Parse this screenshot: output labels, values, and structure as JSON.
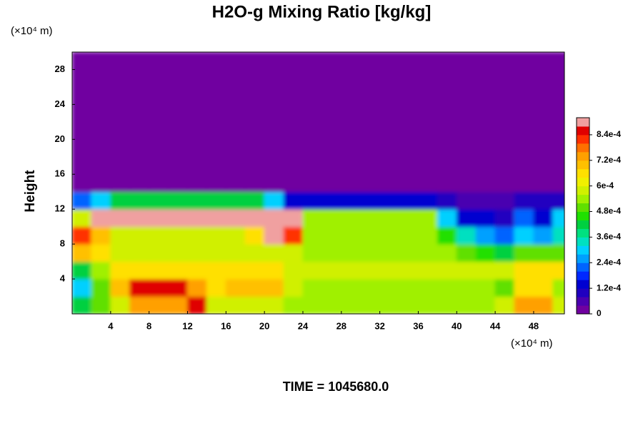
{
  "chart_data": {
    "type": "heatmap",
    "title": "H2O-g Mixing Ratio [kg/kg]",
    "y_label": "Height",
    "x_unit": "(×10⁴ m)",
    "y_unit": "(×10⁴ m)",
    "footer": "TIME = 1045680.0",
    "x": [
      1,
      3,
      5,
      7,
      9,
      11,
      13,
      15,
      17,
      19,
      21,
      23,
      25,
      27,
      29,
      31,
      33,
      35,
      37,
      39,
      41,
      43,
      45,
      47,
      49,
      51
    ],
    "y": [
      1,
      3,
      5,
      7,
      9,
      11,
      13,
      15,
      17,
      19,
      21,
      23,
      25,
      27,
      29
    ],
    "xlim": [
      0,
      51.2
    ],
    "ylim": [
      0,
      30
    ],
    "xticks": [
      4,
      8,
      12,
      16,
      20,
      24,
      28,
      32,
      36,
      40,
      44,
      48
    ],
    "yticks": [
      4,
      8,
      12,
      16,
      20,
      24,
      28
    ],
    "z": [
      [
        0.0004,
        0.0005,
        0.0006,
        0.00075,
        0.00075,
        0.00075,
        0.00085,
        0.0006,
        0.0006,
        0.0006,
        0.0006,
        0.00055,
        0.00055,
        0.00055,
        0.00055,
        0.00055,
        0.00055,
        0.00055,
        0.00055,
        0.00055,
        0.00055,
        0.00055,
        0.0006,
        0.00075,
        0.00075,
        0.0006
      ],
      [
        0.0003,
        0.0005,
        0.0007,
        0.00085,
        0.00085,
        0.00085,
        0.00075,
        0.00065,
        0.0007,
        0.0007,
        0.0007,
        0.0006,
        0.00055,
        0.00055,
        0.00055,
        0.00055,
        0.00055,
        0.00055,
        0.00055,
        0.00055,
        0.00055,
        0.00055,
        0.0005,
        0.00065,
        0.00065,
        0.00055
      ],
      [
        0.0004,
        0.00055,
        0.00065,
        0.00065,
        0.00065,
        0.00065,
        0.00065,
        0.00065,
        0.00065,
        0.00065,
        0.00065,
        0.0006,
        0.00058,
        0.00058,
        0.00058,
        0.00058,
        0.00058,
        0.00058,
        0.00058,
        0.00058,
        0.00058,
        0.00058,
        0.00058,
        0.00065,
        0.00065,
        0.00065
      ],
      [
        0.0007,
        0.00065,
        0.0006,
        0.0006,
        0.0006,
        0.0006,
        0.0006,
        0.0006,
        0.0006,
        0.0006,
        0.0006,
        0.0006,
        0.00055,
        0.00055,
        0.00055,
        0.00055,
        0.00055,
        0.00055,
        0.00055,
        0.00055,
        0.0005,
        0.00045,
        0.0004,
        0.0005,
        0.0005,
        0.0005
      ],
      [
        0.0008,
        0.0007,
        0.0006,
        0.0006,
        0.0006,
        0.0006,
        0.0006,
        0.0006,
        0.0006,
        0.00065,
        0.0009,
        0.0008,
        0.00055,
        0.00055,
        0.00055,
        0.00055,
        0.00055,
        0.00055,
        0.00055,
        0.00045,
        0.00035,
        0.00025,
        0.0002,
        0.0003,
        0.00025,
        0.00035
      ],
      [
        0.0006,
        0.00092,
        0.00092,
        0.00092,
        0.00092,
        0.00092,
        0.00092,
        0.00092,
        0.00092,
        0.00092,
        0.00092,
        0.0009,
        0.00055,
        0.00055,
        0.00055,
        0.00055,
        0.00055,
        0.00055,
        0.00055,
        0.0003,
        0.00015,
        0.00015,
        0.0001,
        0.0002,
        0.00015,
        0.0003
      ],
      [
        0.0002,
        0.0003,
        0.0004,
        0.0004,
        0.0004,
        0.0004,
        0.0004,
        0.0004,
        0.0004,
        0.0004,
        0.0003,
        0.00015,
        0.00015,
        0.00015,
        0.00015,
        0.00015,
        0.00015,
        0.00015,
        0.00015,
        8e-05,
        4e-05,
        4e-05,
        4e-05,
        8e-05,
        8e-05,
        8e-05
      ],
      [
        0,
        0,
        0,
        0,
        0,
        0,
        0,
        0,
        0,
        0,
        0,
        0,
        0,
        0,
        0,
        0,
        0,
        0,
        0,
        0,
        0,
        0,
        0,
        0,
        0,
        0
      ],
      [
        0,
        0,
        0,
        0,
        0,
        0,
        0,
        0,
        0,
        0,
        0,
        0,
        0,
        0,
        0,
        0,
        0,
        0,
        0,
        0,
        0,
        0,
        0,
        0,
        0,
        0
      ],
      [
        0,
        0,
        0,
        0,
        0,
        0,
        0,
        0,
        0,
        0,
        0,
        0,
        0,
        0,
        0,
        0,
        0,
        0,
        0,
        0,
        0,
        0,
        0,
        0,
        0,
        0
      ],
      [
        0,
        0,
        0,
        0,
        0,
        0,
        0,
        0,
        0,
        0,
        0,
        0,
        0,
        0,
        0,
        0,
        0,
        0,
        0,
        0,
        0,
        0,
        0,
        0,
        0,
        0
      ],
      [
        0,
        0,
        0,
        0,
        0,
        0,
        0,
        0,
        0,
        0,
        0,
        0,
        0,
        0,
        0,
        0,
        0,
        0,
        0,
        0,
        0,
        0,
        0,
        0,
        0,
        0
      ],
      [
        0,
        0,
        0,
        0,
        0,
        0,
        0,
        0,
        0,
        0,
        0,
        0,
        0,
        0,
        0,
        0,
        0,
        0,
        0,
        0,
        0,
        0,
        0,
        0,
        0,
        0
      ],
      [
        0,
        0,
        0,
        0,
        0,
        0,
        0,
        0,
        0,
        0,
        0,
        0,
        0,
        0,
        0,
        0,
        0,
        0,
        0,
        0,
        0,
        0,
        0,
        0,
        0,
        0
      ],
      [
        0,
        0,
        0,
        0,
        0,
        0,
        0,
        0,
        0,
        0,
        0,
        0,
        0,
        0,
        0,
        0,
        0,
        0,
        0,
        0,
        0,
        0,
        0,
        0,
        0,
        0
      ]
    ],
    "zlim": [
      0,
      0.00092
    ],
    "zticks": [
      0,
      {
        "value": 0.00012,
        "label": "1.2e-4"
      },
      {
        "value": 0.00024,
        "label": "2.4e-4"
      },
      {
        "value": 0.00036,
        "label": "3.6e-4"
      },
      {
        "value": 0.00048,
        "label": "4.8e-4"
      },
      {
        "value": 0.0006,
        "label": "6e-4"
      },
      {
        "value": 0.00072,
        "label": "7.2e-4"
      },
      {
        "value": 0.00084,
        "label": "8.4e-4"
      }
    ],
    "colormap": [
      "#7000a0",
      "#4a00b0",
      "#2000c0",
      "#0000d0",
      "#0028ff",
      "#0064ff",
      "#00a0ff",
      "#00d0ff",
      "#00e0c0",
      "#00e080",
      "#00d040",
      "#20e000",
      "#60e000",
      "#a0f000",
      "#d0f000",
      "#f0f000",
      "#ffe000",
      "#ffc000",
      "#ffa000",
      "#ff7000",
      "#ff3000",
      "#e00000",
      "#f0a0a0"
    ]
  }
}
